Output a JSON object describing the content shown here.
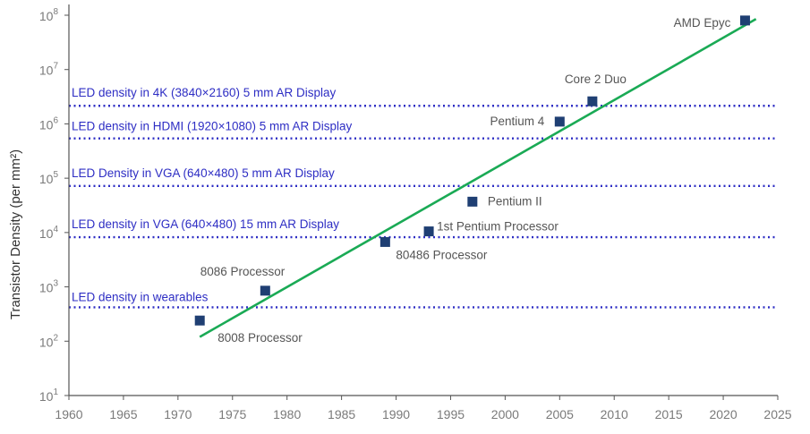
{
  "chart_data": {
    "type": "scatter",
    "title": "",
    "xlabel": "",
    "ylabel": "Transistor Density (per mm²)",
    "xlim": [
      1960,
      2025
    ],
    "ylim": [
      10,
      100000000
    ],
    "yscale": "log",
    "x_ticks": [
      "1960",
      "1965",
      "1970",
      "1975",
      "1980",
      "1985",
      "1990",
      "1995",
      "2000",
      "2005",
      "2010",
      "2015",
      "2020",
      "2025"
    ],
    "y_ticks": [
      {
        "base": "10",
        "exp": "1"
      },
      {
        "base": "10",
        "exp": "2"
      },
      {
        "base": "10",
        "exp": "3"
      },
      {
        "base": "10",
        "exp": "4"
      },
      {
        "base": "10",
        "exp": "5"
      },
      {
        "base": "10",
        "exp": "6"
      },
      {
        "base": "10",
        "exp": "7"
      },
      {
        "base": "10",
        "exp": "8"
      }
    ],
    "grid": false,
    "points": [
      {
        "label": "8008 Processor",
        "x": 1972,
        "y": 240
      },
      {
        "label": "8086 Processor",
        "x": 1978,
        "y": 850
      },
      {
        "label": "80486 Processor",
        "x": 1989,
        "y": 6700
      },
      {
        "label": "1st Pentium Processor",
        "x": 1993,
        "y": 10500
      },
      {
        "label": "Pentium II",
        "x": 1997,
        "y": 37000
      },
      {
        "label": "Pentium 4",
        "x": 2005,
        "y": 1100000
      },
      {
        "label": "Core 2 Duo",
        "x": 2008,
        "y": 2600000
      },
      {
        "label": "AMD Epyc",
        "x": 2022,
        "y": 80000000
      }
    ],
    "trend_line": {
      "x": [
        1972,
        2023
      ],
      "y": [
        120,
        85000000
      ]
    },
    "reference_lines": [
      {
        "label": "LED density in wearables",
        "y": 420
      },
      {
        "label": "LED density in VGA (640×480) 15 mm AR Display",
        "y": 8200
      },
      {
        "label": "LED Density in VGA (640×480) 5 mm AR Display",
        "y": 72000
      },
      {
        "label": "LED density in HDMI (1920×1080) 5 mm AR Display",
        "y": 540000
      },
      {
        "label": "LED density in 4K (3840×2160) 5 mm AR Display",
        "y": 2150000
      }
    ],
    "colors": {
      "marker": "#1f3f73",
      "trend": "#1aaa55",
      "reference": "#2e2ec4",
      "axis": "#555555"
    }
  }
}
